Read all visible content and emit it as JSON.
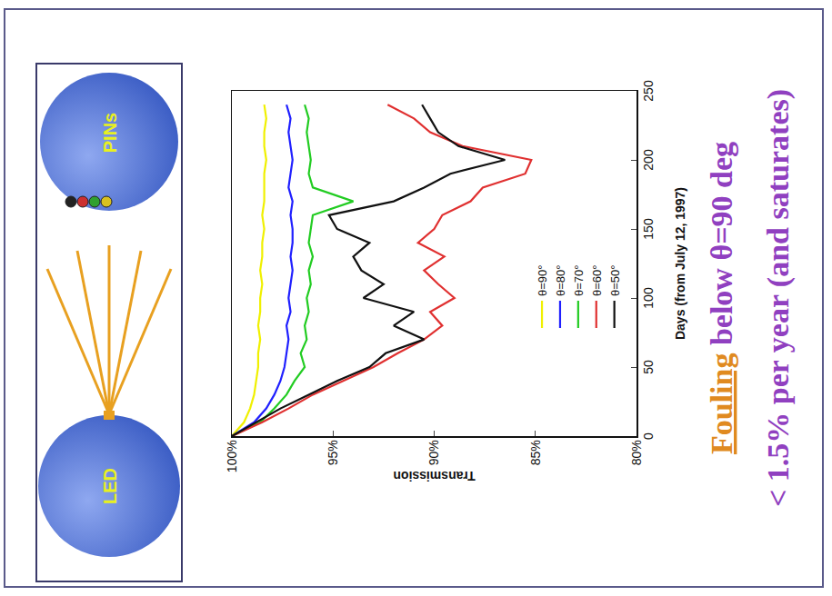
{
  "chart_data": {
    "type": "line",
    "x_label": "Days (from July 12, 1997)",
    "y_label": "Transmission",
    "x": [
      0,
      10,
      20,
      30,
      40,
      50,
      60,
      70,
      80,
      90,
      100,
      110,
      120,
      130,
      140,
      150,
      160,
      170,
      180,
      190,
      200,
      210,
      220,
      230,
      240
    ],
    "xlim": [
      0,
      250
    ],
    "xticks": [
      0,
      50,
      100,
      150,
      200,
      250
    ],
    "ylim": [
      80,
      100
    ],
    "yticks": [
      {
        "value": 80,
        "label": "80%"
      },
      {
        "value": 85,
        "label": "85%"
      },
      {
        "value": 90,
        "label": "90%"
      },
      {
        "value": 95,
        "label": "95%"
      },
      {
        "value": 100,
        "label": "100%"
      }
    ],
    "grid": false,
    "legend": "bottom",
    "line_style": "solid",
    "series": [
      {
        "name": "θ=90°",
        "color": "#f0f000",
        "values": [
          100,
          99.4,
          99.1,
          98.9,
          98.8,
          98.7,
          98.7,
          98.6,
          98.7,
          98.6,
          98.6,
          98.5,
          98.6,
          98.5,
          98.5,
          98.4,
          98.5,
          98.4,
          98.4,
          98.4,
          98.3,
          98.4,
          98.4,
          98.3,
          98.4
        ]
      },
      {
        "name": "θ=80°",
        "color": "#2020ff",
        "values": [
          100,
          98.9,
          98.3,
          97.9,
          97.6,
          97.4,
          97.3,
          97.2,
          97.3,
          97.1,
          97.2,
          97.1,
          97.0,
          97.1,
          97.0,
          97.0,
          97.1,
          97.0,
          97.2,
          97.1,
          97.0,
          97.1,
          97.2,
          97.1,
          97.3
        ]
      },
      {
        "name": "θ=70°",
        "color": "#22cc22",
        "values": [
          100,
          98.6,
          97.9,
          97.3,
          96.9,
          96.4,
          96.6,
          96.3,
          96.4,
          96.2,
          96.3,
          96.1,
          96.2,
          96.0,
          96.2,
          96.1,
          96.0,
          94.0,
          96.0,
          96.2,
          96.1,
          96.2,
          96.3,
          96.2,
          96.4
        ]
      },
      {
        "name": "θ=60°",
        "color": "#e03030",
        "values": [
          100,
          98.5,
          97.2,
          96.0,
          94.5,
          93.0,
          91.8,
          90.5,
          89.6,
          90.2,
          89.0,
          89.8,
          90.5,
          89.5,
          90.8,
          90.0,
          89.6,
          88.2,
          87.6,
          85.5,
          85.2,
          88.6,
          90.2,
          91.0,
          92.3
        ]
      },
      {
        "name": "θ=50°",
        "color": "#111111",
        "values": [
          100,
          98.8,
          97.6,
          96.2,
          94.8,
          93.2,
          92.4,
          90.5,
          92.0,
          91.0,
          93.5,
          92.5,
          93.6,
          94.0,
          93.2,
          94.8,
          95.2,
          92.0,
          90.5,
          89.2,
          86.5,
          88.8,
          89.8,
          90.2,
          90.6
        ]
      }
    ]
  },
  "diagram": {
    "source": "LED",
    "detector": "PINs"
  },
  "caption": {
    "highlight": "Fouling",
    "lines": [
      "Fouling below θ=90 deg",
      "< 1.5% per year (and saturates)"
    ]
  }
}
